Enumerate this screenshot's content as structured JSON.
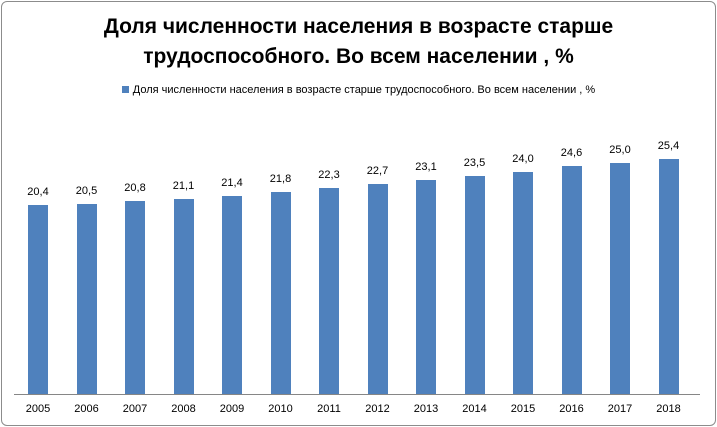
{
  "chart_data": {
    "type": "bar",
    "title": "Доля численности населения в возрасте старше трудоспособного. Во всем населении , %",
    "title_lines": [
      "Доля численности населения в возрасте старше",
      "трудоспособного. Во всем населении , %"
    ],
    "legend": [
      "Доля численности населения в возрасте старше трудоспособного. Во всем населении , %"
    ],
    "legend_position": "top",
    "categories": [
      "2005",
      "2006",
      "2007",
      "2008",
      "2009",
      "2010",
      "2011",
      "2012",
      "2013",
      "2014",
      "2015",
      "2016",
      "2017",
      "2018"
    ],
    "series": [
      {
        "name": "Доля численности населения в возрасте старше трудоспособного. Во всем населении , %",
        "values": [
          20.4,
          20.5,
          20.8,
          21.1,
          21.4,
          21.8,
          22.3,
          22.7,
          23.1,
          23.5,
          24.0,
          24.6,
          25.0,
          25.4
        ],
        "labels": [
          "20,4",
          "20,5",
          "20,8",
          "21,1",
          "21,4",
          "21,8",
          "22,3",
          "22,7",
          "23,1",
          "23,5",
          "24,0",
          "24,6",
          "25,0",
          "25,4"
        ],
        "color": "#4f81bd"
      }
    ],
    "xlabel": "",
    "ylabel": "",
    "ylim": [
      0,
      30
    ],
    "grid": false,
    "y_axis_visible": false
  },
  "colors": {
    "bar": "#4f81bd",
    "axis": "#868686"
  }
}
